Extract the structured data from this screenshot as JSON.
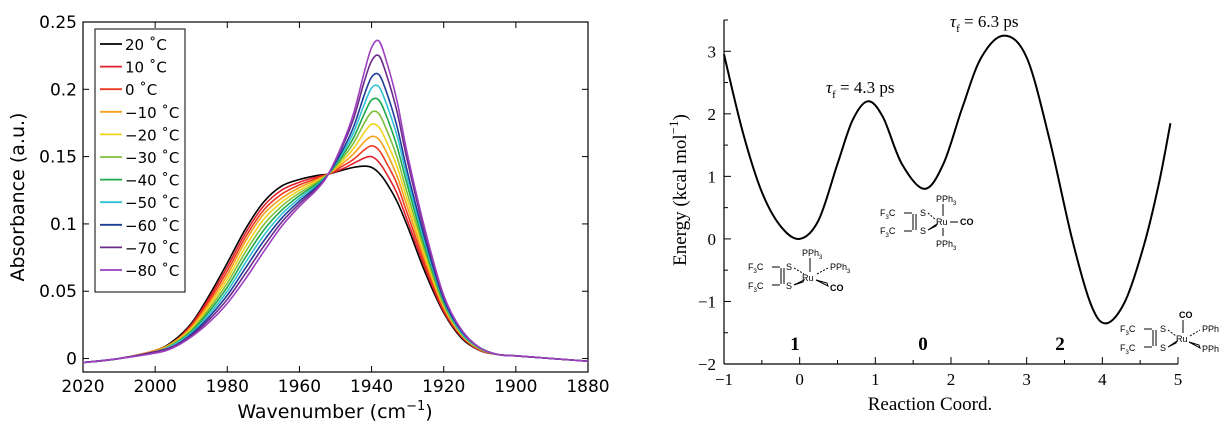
{
  "chart_data": [
    {
      "type": "line",
      "xlabel": "Wavenumber (cm",
      "xlabel_sup": "−1",
      "xlabel_close": ")",
      "ylabel": "Absorbance (a.u.)",
      "xlim": [
        2020,
        1880
      ],
      "ylim": [
        -0.01,
        0.25
      ],
      "x_ticks": [
        2020,
        2000,
        1980,
        1960,
        1940,
        1920,
        1900,
        1880
      ],
      "x_tick_labels": [
        "2020",
        "2000",
        "1980",
        "1960",
        "1940",
        "1920",
        "1900",
        "1880"
      ],
      "y_ticks": [
        0,
        0.05,
        0.1,
        0.15,
        0.2,
        0.25
      ],
      "y_tick_labels": [
        "0",
        "0.05",
        "0.1",
        "0.15",
        "0.2",
        "0.25"
      ],
      "legend_position": "top-left",
      "shape_x": [
        2020,
        2010,
        2000,
        1995,
        1990,
        1985,
        1980,
        1975,
        1970,
        1965,
        1960,
        1955,
        1952,
        1948,
        1945,
        1942,
        1940,
        1938,
        1936,
        1933,
        1930,
        1925,
        1920,
        1915,
        1910,
        1905,
        1900,
        1895,
        1890,
        1885,
        1880
      ],
      "series": [
        {
          "name": "20 ˚C",
          "color": "#000000",
          "values": [
            -0.003,
            0.0,
            0.006,
            0.013,
            0.026,
            0.047,
            0.071,
            0.096,
            0.116,
            0.128,
            0.133,
            0.136,
            0.137,
            0.14,
            0.142,
            0.143,
            0.142,
            0.138,
            0.131,
            0.117,
            0.098,
            0.063,
            0.034,
            0.015,
            0.006,
            0.003,
            0.002,
            0.001,
            0.0,
            -0.001,
            -0.002
          ]
        },
        {
          "name": "10 ˚C",
          "color": "#e0202a",
          "values": [
            -0.003,
            0.0,
            0.006,
            0.012,
            0.025,
            0.045,
            0.068,
            0.093,
            0.113,
            0.125,
            0.131,
            0.135,
            0.137,
            0.141,
            0.145,
            0.149,
            0.15,
            0.146,
            0.138,
            0.123,
            0.102,
            0.066,
            0.035,
            0.016,
            0.006,
            0.003,
            0.002,
            0.001,
            0.0,
            -0.001,
            -0.002
          ]
        },
        {
          "name": "0 ˚C",
          "color": "#ee3a22",
          "values": [
            -0.003,
            0.0,
            0.006,
            0.012,
            0.024,
            0.043,
            0.065,
            0.09,
            0.11,
            0.122,
            0.129,
            0.134,
            0.137,
            0.143,
            0.148,
            0.155,
            0.158,
            0.155,
            0.146,
            0.13,
            0.107,
            0.069,
            0.037,
            0.017,
            0.007,
            0.003,
            0.002,
            0.001,
            0.0,
            -0.001,
            -0.002
          ]
        },
        {
          "name": "−10 ˚C",
          "color": "#f6a21a",
          "values": [
            -0.003,
            0.0,
            0.006,
            0.012,
            0.023,
            0.041,
            0.062,
            0.087,
            0.107,
            0.119,
            0.127,
            0.133,
            0.137,
            0.145,
            0.152,
            0.161,
            0.165,
            0.163,
            0.154,
            0.136,
            0.112,
            0.072,
            0.038,
            0.017,
            0.007,
            0.003,
            0.002,
            0.001,
            0.0,
            -0.001,
            -0.002
          ]
        },
        {
          "name": "−20 ˚C",
          "color": "#f2d31b",
          "values": [
            -0.003,
            0.0,
            0.005,
            0.011,
            0.022,
            0.039,
            0.059,
            0.083,
            0.103,
            0.116,
            0.125,
            0.132,
            0.137,
            0.147,
            0.156,
            0.168,
            0.174,
            0.172,
            0.162,
            0.143,
            0.117,
            0.075,
            0.039,
            0.018,
            0.007,
            0.003,
            0.002,
            0.001,
            0.0,
            -0.001,
            -0.002
          ]
        },
        {
          "name": "−30 ˚C",
          "color": "#7fbf3a",
          "values": [
            -0.003,
            0.0,
            0.005,
            0.011,
            0.021,
            0.037,
            0.056,
            0.079,
            0.099,
            0.113,
            0.123,
            0.131,
            0.137,
            0.149,
            0.16,
            0.175,
            0.183,
            0.182,
            0.171,
            0.15,
            0.122,
            0.078,
            0.04,
            0.018,
            0.007,
            0.003,
            0.002,
            0.001,
            0.0,
            -0.001,
            -0.002
          ]
        },
        {
          "name": "−40 ˚C",
          "color": "#1fa84a",
          "values": [
            -0.003,
            0.0,
            0.005,
            0.01,
            0.02,
            0.035,
            0.053,
            0.075,
            0.095,
            0.11,
            0.121,
            0.13,
            0.137,
            0.151,
            0.164,
            0.182,
            0.192,
            0.192,
            0.181,
            0.158,
            0.128,
            0.081,
            0.042,
            0.019,
            0.008,
            0.003,
            0.002,
            0.001,
            0.0,
            -0.001,
            -0.002
          ]
        },
        {
          "name": "−50 ˚C",
          "color": "#2fc1d4",
          "values": [
            -0.003,
            0.0,
            0.005,
            0.01,
            0.019,
            0.033,
            0.05,
            0.071,
            0.091,
            0.107,
            0.119,
            0.129,
            0.137,
            0.153,
            0.168,
            0.189,
            0.201,
            0.202,
            0.19,
            0.166,
            0.133,
            0.084,
            0.043,
            0.019,
            0.008,
            0.003,
            0.002,
            0.001,
            0.0,
            -0.001,
            -0.002
          ]
        },
        {
          "name": "−60 ˚C",
          "color": "#1f3d99",
          "values": [
            -0.003,
            0.0,
            0.005,
            0.009,
            0.018,
            0.031,
            0.047,
            0.067,
            0.087,
            0.104,
            0.117,
            0.128,
            0.137,
            0.155,
            0.172,
            0.196,
            0.209,
            0.211,
            0.199,
            0.173,
            0.138,
            0.087,
            0.044,
            0.02,
            0.008,
            0.003,
            0.002,
            0.001,
            0.0,
            -0.001,
            -0.002
          ]
        },
        {
          "name": "−70 ˚C",
          "color": "#6a2a8a",
          "values": [
            -0.003,
            0.0,
            0.005,
            0.009,
            0.017,
            0.029,
            0.044,
            0.063,
            0.083,
            0.101,
            0.115,
            0.127,
            0.137,
            0.158,
            0.178,
            0.206,
            0.221,
            0.225,
            0.212,
            0.184,
            0.146,
            0.091,
            0.046,
            0.021,
            0.008,
            0.003,
            0.002,
            0.001,
            0.0,
            -0.001,
            -0.002
          ]
        },
        {
          "name": "−80 ˚C",
          "color": "#9d3fc0",
          "values": [
            -0.003,
            0.0,
            0.004,
            0.008,
            0.016,
            0.027,
            0.041,
            0.059,
            0.079,
            0.098,
            0.113,
            0.126,
            0.137,
            0.16,
            0.182,
            0.213,
            0.231,
            0.236,
            0.222,
            0.192,
            0.151,
            0.094,
            0.047,
            0.021,
            0.008,
            0.003,
            0.002,
            0.001,
            0.0,
            -0.001,
            -0.002
          ]
        }
      ]
    },
    {
      "type": "line",
      "xlabel": "Reaction Coord.",
      "ylabel": "Energy (kcal mol",
      "ylabel_sup": "−1",
      "ylabel_close": ")",
      "xlim": [
        -1,
        5
      ],
      "ylim": [
        -2,
        3.5
      ],
      "x_ticks": [
        -1,
        0,
        1,
        2,
        3,
        4,
        5
      ],
      "x_tick_labels": [
        "−1",
        "0",
        "1",
        "2",
        "3",
        "4",
        "5"
      ],
      "y_ticks": [
        -2,
        -1,
        0,
        1,
        2,
        3
      ],
      "y_tick_labels": [
        "−2",
        "−1",
        "0",
        "1",
        "2",
        "3"
      ],
      "series": [
        {
          "name": "",
          "color": "#000000",
          "points": [
            [
              -1.0,
              2.95
            ],
            [
              -0.75,
              1.7
            ],
            [
              -0.5,
              0.75
            ],
            [
              -0.25,
              0.2
            ],
            [
              0.0,
              0.0
            ],
            [
              0.25,
              0.3
            ],
            [
              0.5,
              1.2
            ],
            [
              0.7,
              1.9
            ],
            [
              0.9,
              2.2
            ],
            [
              1.1,
              1.95
            ],
            [
              1.35,
              1.2
            ],
            [
              1.65,
              0.8
            ],
            [
              1.9,
              1.2
            ],
            [
              2.15,
              2.1
            ],
            [
              2.4,
              2.9
            ],
            [
              2.7,
              3.25
            ],
            [
              3.0,
              2.9
            ],
            [
              3.3,
              1.6
            ],
            [
              3.6,
              0.0
            ],
            [
              3.85,
              -1.05
            ],
            [
              4.05,
              -1.35
            ],
            [
              4.3,
              -1.0
            ],
            [
              4.55,
              -0.1
            ],
            [
              4.75,
              0.9
            ],
            [
              4.9,
              1.85
            ]
          ]
        }
      ],
      "annotations": {
        "tau1_base": "τ",
        "tau1_sub": "f",
        "tau1_rest": " = 4.3 ps",
        "tau2_base": "τ",
        "tau2_sub": "f",
        "tau2_rest": " = 6.3 ps",
        "label_1": "1",
        "label_0": "0",
        "label_2": "2"
      },
      "structures": {
        "pph3": "PPh",
        "three": "3",
        "pph_cut": "PPh",
        "f3c": "F",
        "three_small": "3",
        "c": "C",
        "s": "S",
        "ru": "Ru",
        "co": "CO"
      }
    }
  ]
}
